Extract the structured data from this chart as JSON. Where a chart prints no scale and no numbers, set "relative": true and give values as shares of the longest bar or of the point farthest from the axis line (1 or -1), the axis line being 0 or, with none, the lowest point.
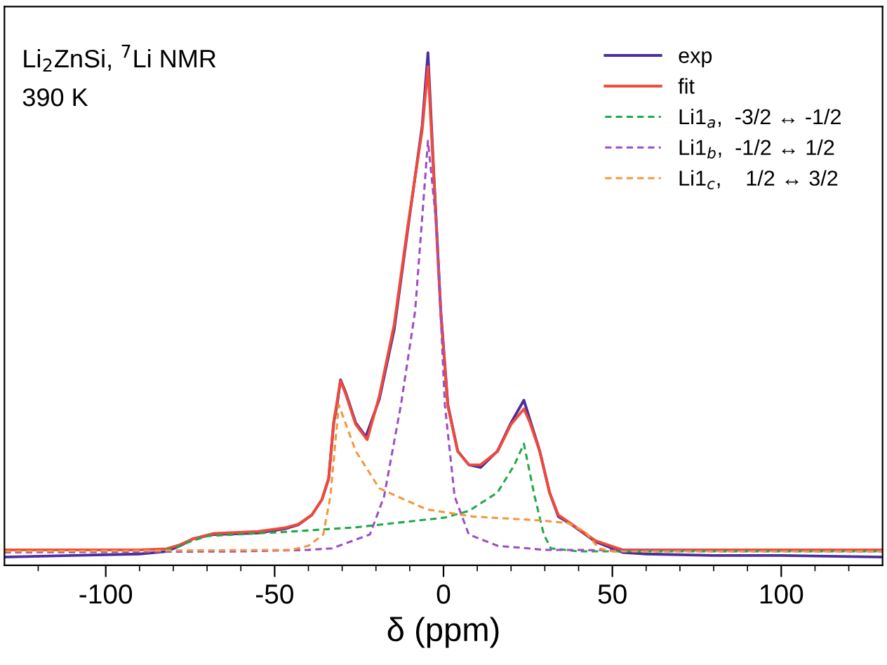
{
  "chart_data": {
    "type": "line",
    "relative": true,
    "xlabel": "δ (ppm)",
    "annotations": [
      "Li$_{2}$ZnSi, $^{7}$Li NMR",
      "390 K"
    ],
    "xlim": [
      -130,
      130
    ],
    "xticks": [
      {
        "value": -120,
        "label": null
      },
      -100,
      {
        "value": -90,
        "label": null
      },
      {
        "value": -80,
        "label": null
      },
      {
        "value": -70,
        "label": null
      },
      {
        "value": -60,
        "label": null
      },
      -50,
      {
        "value": -40,
        "label": null
      },
      {
        "value": -30,
        "label": null
      },
      {
        "value": -20,
        "label": null
      },
      {
        "value": -10,
        "label": null
      },
      0,
      {
        "value": 10,
        "label": null
      },
      {
        "value": 20,
        "label": null
      },
      {
        "value": 30,
        "label": null
      },
      {
        "value": 40,
        "label": null
      },
      50,
      {
        "value": 60,
        "label": null
      },
      {
        "value": 70,
        "label": null
      },
      {
        "value": 80,
        "label": null
      },
      {
        "value": 90,
        "label": null
      },
      100,
      {
        "value": 110,
        "label": null
      },
      {
        "value": 120,
        "label": null
      }
    ],
    "tick_labels": "x",
    "grid": false,
    "legend": "top right",
    "marker": "none",
    "series": [
      {
        "name": "exp",
        "color": "#4b2e9e",
        "line_style": "solid",
        "x": [
          -130,
          -110,
          -90,
          -82,
          -78,
          -74,
          -68,
          -55,
          -47,
          -43,
          -39,
          -36,
          -34,
          -32.5,
          -31.5,
          -30.5,
          -29,
          -26,
          -23,
          -19,
          -14.6,
          -10.5,
          -6.3,
          -4.6,
          -2.9,
          -0.8,
          1.3,
          4.2,
          7.5,
          11,
          16,
          20,
          23.8,
          25.5,
          28.5,
          31.4,
          34,
          38,
          45,
          53,
          60,
          80,
          100,
          130
        ],
        "values": [
          0.016,
          0.019,
          0.022,
          0.027,
          0.038,
          0.052,
          0.06,
          0.063,
          0.071,
          0.079,
          0.098,
          0.128,
          0.169,
          0.278,
          0.313,
          0.362,
          0.338,
          0.278,
          0.251,
          0.324,
          0.46,
          0.659,
          0.858,
          1.0,
          0.768,
          0.496,
          0.313,
          0.223,
          0.196,
          0.191,
          0.223,
          0.278,
          0.322,
          0.286,
          0.223,
          0.142,
          0.095,
          0.079,
          0.046,
          0.025,
          0.022,
          0.019,
          0.019,
          0.016
        ]
      },
      {
        "name": "fit",
        "color": "#f04a3a",
        "line_style": "solid",
        "x": [
          -130,
          -90,
          -82,
          -78,
          -74,
          -68,
          -55,
          -47,
          -43,
          -39,
          -36,
          -34,
          -32.5,
          -30.5,
          -29,
          -26,
          -22.6,
          -19,
          -14.6,
          -10.5,
          -6.3,
          -4.6,
          -2.9,
          -0.8,
          1.3,
          4.2,
          7.5,
          11,
          16,
          20,
          23.8,
          25.5,
          28.5,
          31.4,
          34,
          38,
          45,
          53,
          130
        ],
        "values": [
          0.03,
          0.03,
          0.032,
          0.04,
          0.052,
          0.062,
          0.066,
          0.073,
          0.08,
          0.098,
          0.128,
          0.17,
          0.28,
          0.36,
          0.335,
          0.275,
          0.245,
          0.33,
          0.47,
          0.665,
          0.85,
          0.973,
          0.76,
          0.49,
          0.31,
          0.222,
          0.196,
          0.196,
          0.222,
          0.275,
          0.305,
          0.28,
          0.222,
          0.142,
          0.098,
          0.08,
          0.048,
          0.03,
          0.03
        ]
      },
      {
        "name": "Li1$_{a}$,  -3/2 ↔ -1/2",
        "color": "#22a84a",
        "line_style": "dashed",
        "x": [
          -130,
          -85,
          -80,
          -75,
          -70,
          -47,
          -26,
          0.4,
          7.5,
          16,
          21,
          23.8,
          27,
          29.7,
          31.8,
          40,
          130
        ],
        "values": [
          0.027,
          0.027,
          0.033,
          0.046,
          0.057,
          0.065,
          0.074,
          0.093,
          0.106,
          0.142,
          0.196,
          0.237,
          0.134,
          0.06,
          0.033,
          0.027,
          0.027
        ]
      },
      {
        "name": "Li1$_{b}$,  -1/2 ↔ 1/2",
        "color": "#9b4fc0",
        "line_style": "dashed",
        "x": [
          -130,
          -60,
          -40,
          -33,
          -21.8,
          -17.6,
          -12.6,
          -8.4,
          -4.6,
          -2,
          0.4,
          3.3,
          7.5,
          16,
          30,
          130
        ],
        "values": [
          0.025,
          0.027,
          0.03,
          0.033,
          0.06,
          0.134,
          0.313,
          0.496,
          0.828,
          0.659,
          0.313,
          0.134,
          0.06,
          0.038,
          0.03,
          0.027
        ]
      },
      {
        "name": "Li1$_{c}$,    1/2 ↔ 3/2",
        "color": "#f5963a",
        "line_style": "dashed",
        "x": [
          -130,
          -45,
          -40,
          -35.6,
          -33.5,
          -31,
          -26,
          -19,
          -5,
          8.8,
          29.7,
          37,
          42,
          46,
          50,
          130
        ],
        "values": [
          0.027,
          0.03,
          0.038,
          0.06,
          0.134,
          0.313,
          0.223,
          0.15,
          0.109,
          0.095,
          0.087,
          0.082,
          0.065,
          0.033,
          0.027,
          0.027
        ]
      }
    ]
  }
}
